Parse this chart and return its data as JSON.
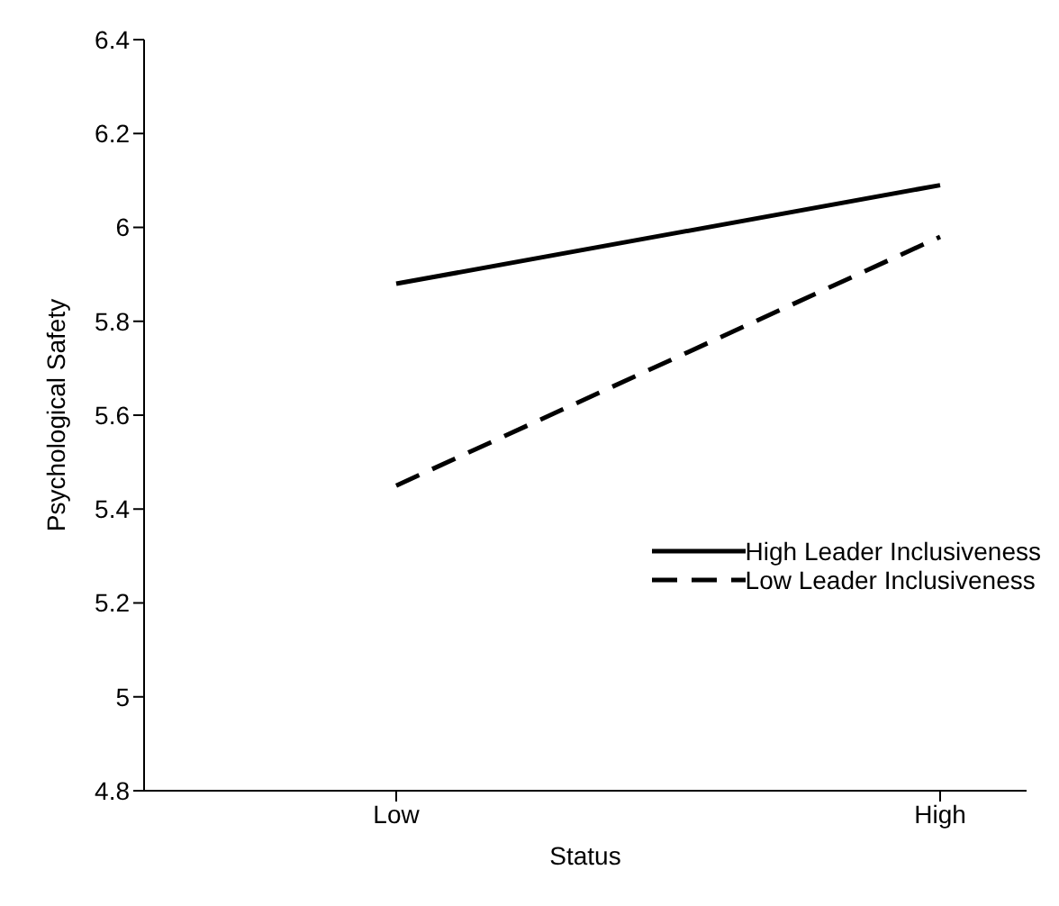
{
  "chart_data": {
    "type": "line",
    "xlabel": "Status",
    "ylabel": "Psychological Safety",
    "categories": [
      "Low",
      "High"
    ],
    "series": [
      {
        "name": "High Leader Inclusiveness",
        "color": "#000000",
        "values": [
          5.88,
          6.09
        ],
        "line_style": "solid"
      },
      {
        "name": "Low Leader Inclusiveness",
        "color": "#000000",
        "values": [
          5.45,
          5.98
        ],
        "line_style": "dashed"
      }
    ],
    "ylim": [
      4.8,
      6.4
    ],
    "yticks": [
      4.8,
      5,
      5.2,
      5.4,
      5.6,
      5.8,
      6,
      6.2,
      6.4
    ],
    "grid": false,
    "legend": "bottom right",
    "marker": "none"
  }
}
